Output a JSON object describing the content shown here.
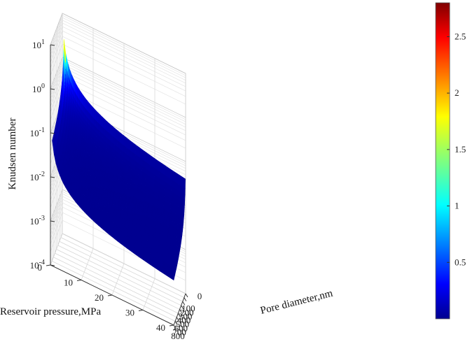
{
  "chart_data": {
    "type": "surface3d",
    "title": "",
    "zlabel": "Knudsen number",
    "xlabel": "Pore diameter,nm",
    "ylabel": "Reservoir pressure,MPa",
    "z_scale": "log",
    "z_ticks": [
      {
        "base": "10",
        "exp": "1"
      },
      {
        "base": "10",
        "exp": "0"
      },
      {
        "base": "10",
        "exp": "-1"
      },
      {
        "base": "10",
        "exp": "-2"
      },
      {
        "base": "10",
        "exp": "-3"
      },
      {
        "base": "10",
        "exp": "-4"
      }
    ],
    "x_ticks": [
      "800",
      "700",
      "600",
      "500",
      "400",
      "300",
      "200",
      "100",
      "0"
    ],
    "y_ticks": [
      "0",
      "10",
      "20",
      "30",
      "40"
    ],
    "xlim": [
      0,
      800
    ],
    "ylim": [
      0,
      40
    ],
    "zlim": [
      0.0001,
      10
    ],
    "colorbar": {
      "ticks": [
        "0.5",
        "1",
        "1.5",
        "2",
        "2.5"
      ],
      "range": [
        0,
        2.8
      ],
      "colormap": "jet"
    },
    "surface_corners": {
      "d_min_p_min_kn": 2.8,
      "d_max_p_min_kn": 0.02,
      "d_min_p_max_kn": 0.02,
      "d_max_p_max_kn": 0.00012
    },
    "grid": true
  }
}
